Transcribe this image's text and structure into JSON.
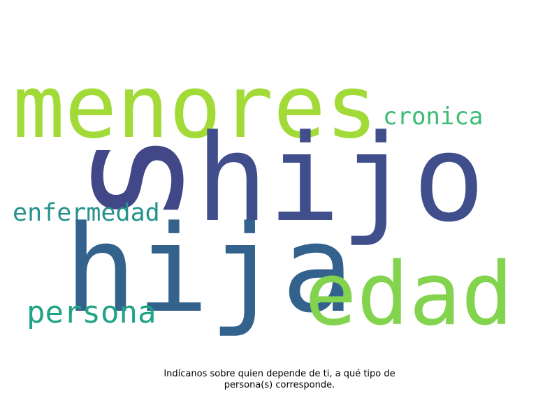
{
  "word_cloud": {
    "words": [
      {
        "key": "menores",
        "text": "menores",
        "color": "#a2da37"
      },
      {
        "key": "hijo",
        "text": "hijo",
        "color": "#404e8c"
      },
      {
        "key": "s",
        "text": "s",
        "color": "#414787"
      },
      {
        "key": "cronica",
        "text": "cronica",
        "color": "#3cbb75"
      },
      {
        "key": "enfermedad",
        "text": "enfermedad",
        "color": "#26928d"
      },
      {
        "key": "hija",
        "text": "hija",
        "color": "#33628d"
      },
      {
        "key": "edad",
        "text": "edad",
        "color": "#82d34e"
      },
      {
        "key": "persona",
        "text": "persona",
        "color": "#20a386"
      }
    ]
  },
  "caption": {
    "line1": "Indícanos sobre quien depende de ti, a qué tipo de",
    "line2": "persona(s) corresponde."
  }
}
